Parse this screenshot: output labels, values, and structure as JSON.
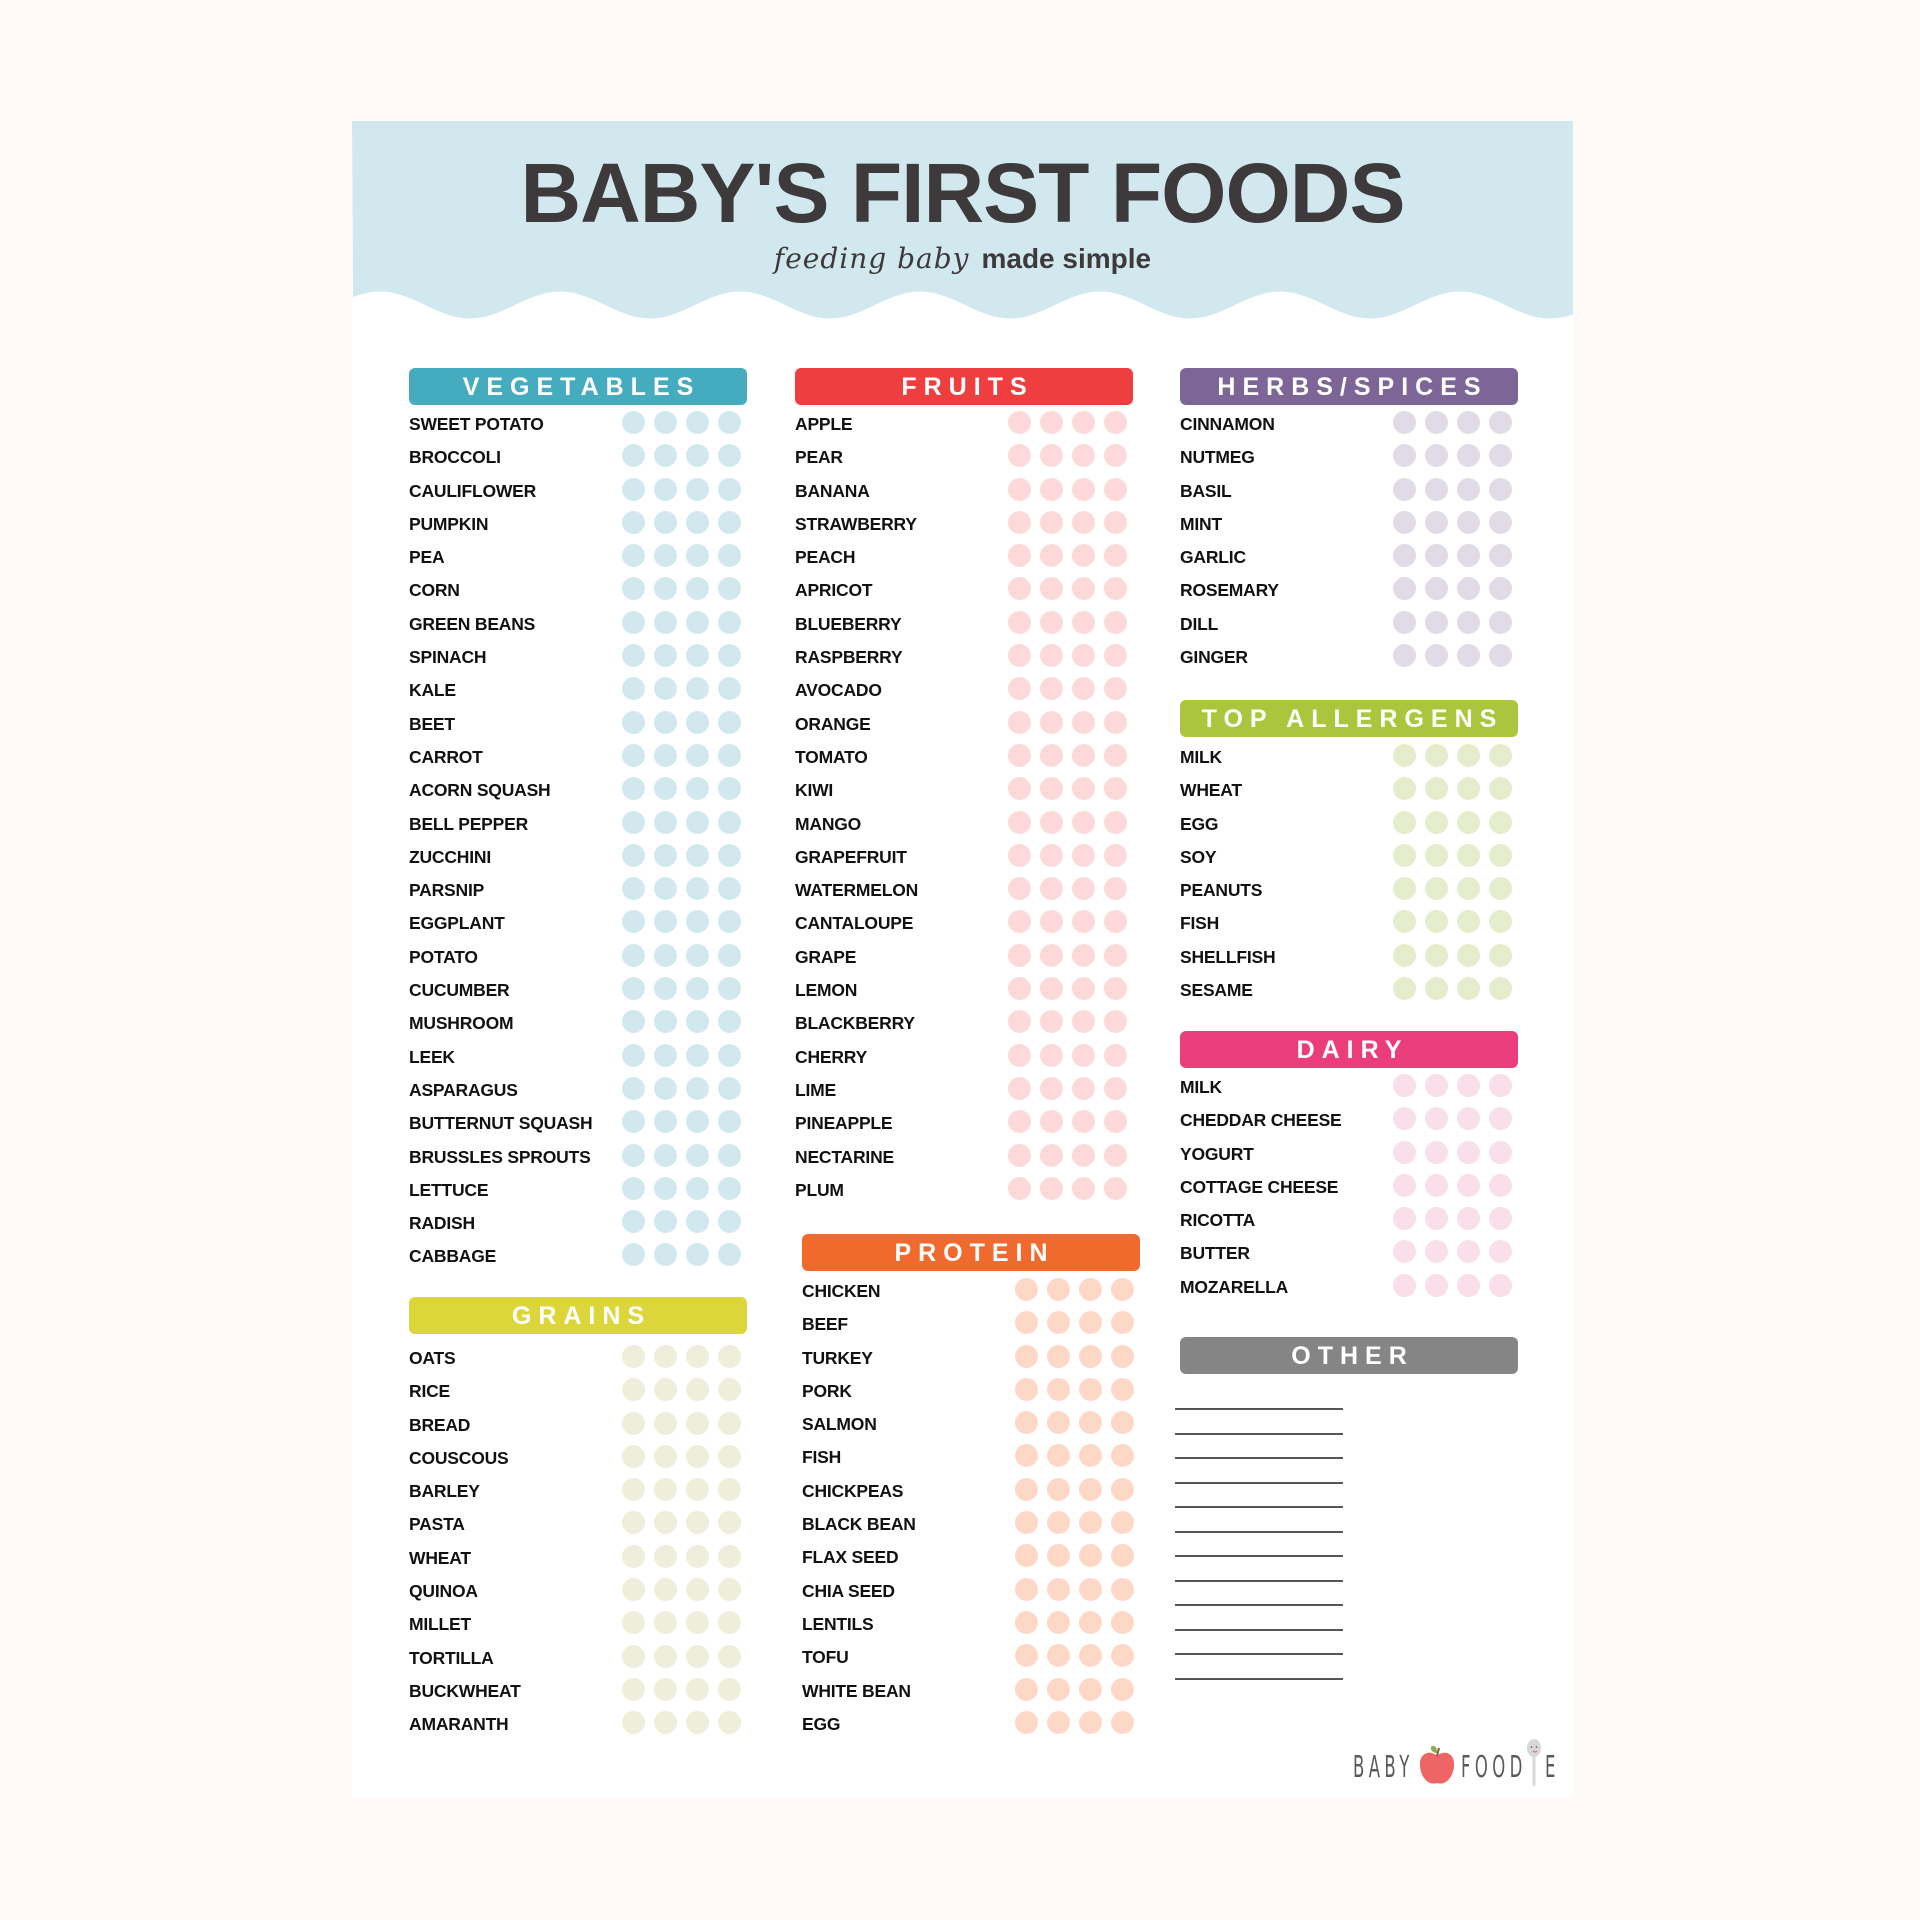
{
  "header": {
    "title": "BABY'S FIRST FOODS",
    "subtitle_script": "feeding baby",
    "subtitle_plain": "made simple"
  },
  "colors": {
    "background": "#fffaf8",
    "hero": "#d1e9ee",
    "title_text": "#3e3a3b",
    "item_text": "#111111"
  },
  "checks_per_item": 4,
  "sections": [
    {
      "id": "vegetables",
      "title": "VEGETABLES",
      "header_color": "#45abbe",
      "dot_color": "#d1e9ee",
      "items": [
        "SWEET POTATO",
        "BROCCOLI",
        "CAULIFLOWER",
        "PUMPKIN",
        "PEA",
        "CORN",
        "GREEN BEANS",
        "SPINACH",
        "KALE",
        "BEET",
        "CARROT",
        "ACORN SQUASH",
        "BELL PEPPER",
        "ZUCCHINI",
        "PARSNIP",
        "EGGPLANT",
        "POTATO",
        "CUCUMBER",
        "MUSHROOM",
        "LEEK",
        "ASPARAGUS",
        "BUTTERNUT SQUASH",
        "BRUSSLES SPROUTS",
        "LETTUCE",
        "RADISH",
        "CABBAGE"
      ]
    },
    {
      "id": "grains",
      "title": "GRAINS",
      "header_color": "#dcd63a",
      "dot_color": "#efeedb",
      "items": [
        "OATS",
        "RICE",
        "BREAD",
        "COUSCOUS",
        "BARLEY",
        "PASTA",
        "WHEAT",
        "QUINOA",
        "MILLET",
        "TORTILLA",
        "BUCKWHEAT",
        "AMARANTH"
      ]
    },
    {
      "id": "fruits",
      "title": "FRUITS",
      "header_color": "#ee3e40",
      "dot_color": "#fdd9d9",
      "items": [
        "APPLE",
        "PEAR",
        "BANANA",
        "STRAWBERRY",
        "PEACH",
        "APRICOT",
        "BLUEBERRY",
        "RASPBERRY",
        "AVOCADO",
        "ORANGE",
        "TOMATO",
        "KIWI",
        "MANGO",
        "GRAPEFRUIT",
        "WATERMELON",
        "CANTALOUPE",
        "GRAPE",
        "LEMON",
        "BLACKBERRY",
        "CHERRY",
        "LIME",
        "PINEAPPLE",
        "NECTARINE",
        "PLUM"
      ]
    },
    {
      "id": "protein",
      "title": "PROTEIN",
      "header_color": "#f06a2e",
      "dot_color": "#fed8c7",
      "items": [
        "CHICKEN",
        "BEEF",
        "TURKEY",
        "PORK",
        "SALMON",
        "FISH",
        "CHICKPEAS",
        "BLACK BEAN",
        "FLAX SEED",
        "CHIA SEED",
        "LENTILS",
        "TOFU",
        "WHITE BEAN",
        "EGG"
      ]
    },
    {
      "id": "herbs",
      "title": "HERBS/SPICES",
      "header_color": "#7e6597",
      "dot_color": "#e0dbe6",
      "items": [
        "CINNAMON",
        "NUTMEG",
        "BASIL",
        "MINT",
        "GARLIC",
        "ROSEMARY",
        "DILL",
        "GINGER"
      ]
    },
    {
      "id": "allergens",
      "title": "TOP ALLERGENS",
      "header_color": "#abc63c",
      "dot_color": "#e5edcd",
      "items": [
        "MILK",
        "WHEAT",
        "EGG",
        "SOY",
        "PEANUTS",
        "FISH",
        "SHELLFISH",
        "SESAME"
      ]
    },
    {
      "id": "dairy",
      "title": "DAIRY",
      "header_color": "#ec3d7b",
      "dot_color": "#f9dfe9",
      "items": [
        "MILK",
        "CHEDDAR CHEESE",
        "YOGURT",
        "COTTAGE CHEESE",
        "RICOTTA",
        "BUTTER",
        "MOZARELLA"
      ]
    },
    {
      "id": "other",
      "title": "OTHER",
      "header_color": "#858585",
      "dot_color": "#e2e2e2",
      "blank_lines": 12,
      "dot_rows": 9
    }
  ],
  "logo": {
    "left_text": "BABY",
    "right_text": "FOOD",
    "end_text": "E",
    "apple_color": "#ef6464",
    "leaf_color": "#8fae4a"
  }
}
